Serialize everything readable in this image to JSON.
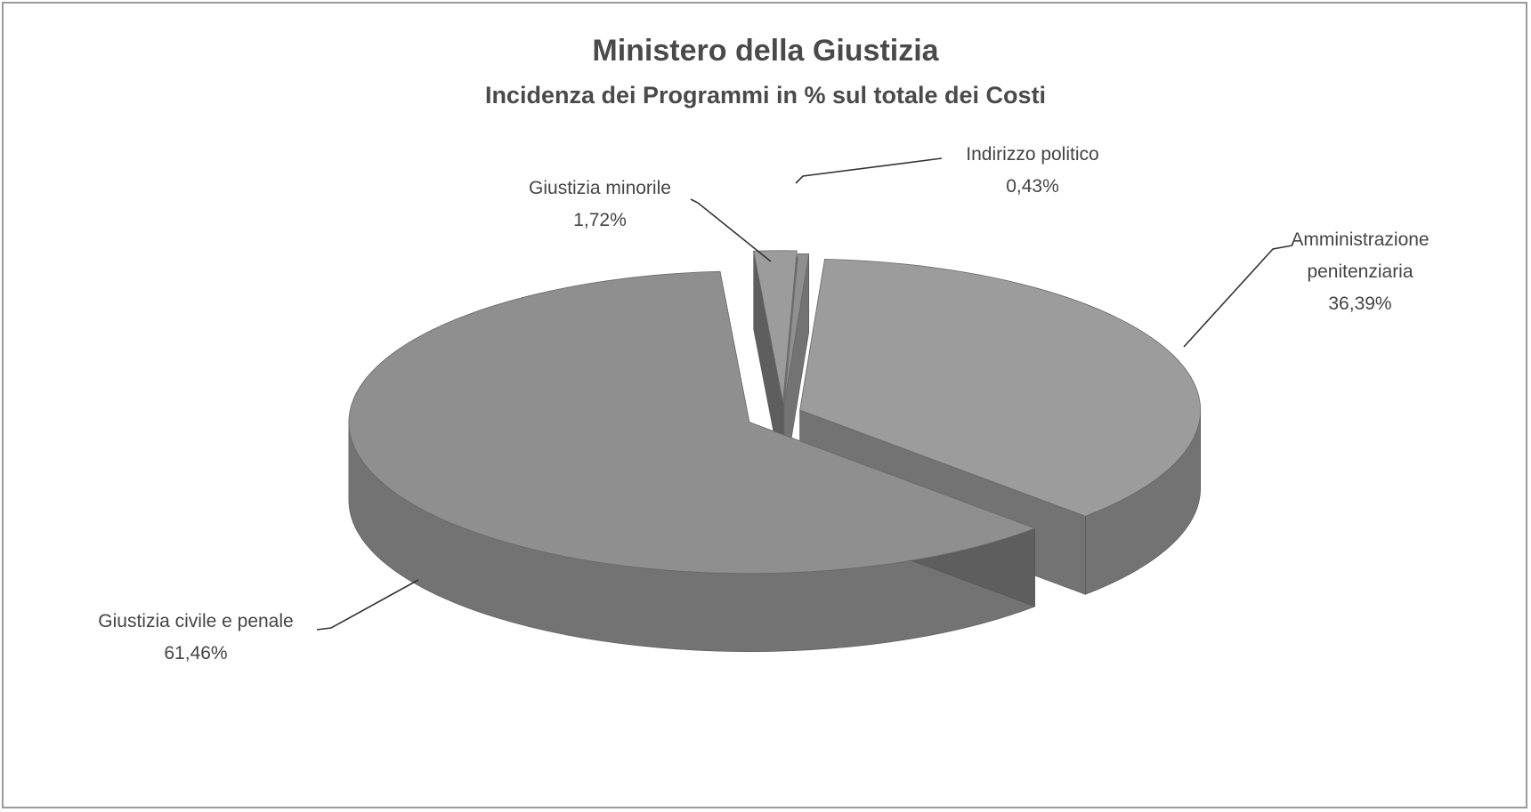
{
  "chart_data": {
    "type": "pie",
    "title": "Ministero della Giustizia",
    "subtitle": "Incidenza dei Programmi in % sul totale dei Costi",
    "three_d": true,
    "exploded": true,
    "slices": [
      {
        "label": "Indirizzo politico",
        "value": 0.43,
        "value_label": "0,43%"
      },
      {
        "label": "Amministrazione penitenziaria",
        "label_lines": [
          "Amministrazione",
          "penitenziaria"
        ],
        "value": 36.39,
        "value_label": "36,39%"
      },
      {
        "label": "Giustizia civile e penale",
        "value": 61.46,
        "value_label": "61,46%"
      },
      {
        "label": "Giustizia minorile",
        "value": 1.72,
        "value_label": "1,72%"
      }
    ],
    "colors": {
      "top": "#9c9c9c",
      "top_dark": "#8f8f8f",
      "side": "#737373",
      "side_dark": "#5e5e5e",
      "label": "#444444",
      "leader": "#333333"
    }
  }
}
